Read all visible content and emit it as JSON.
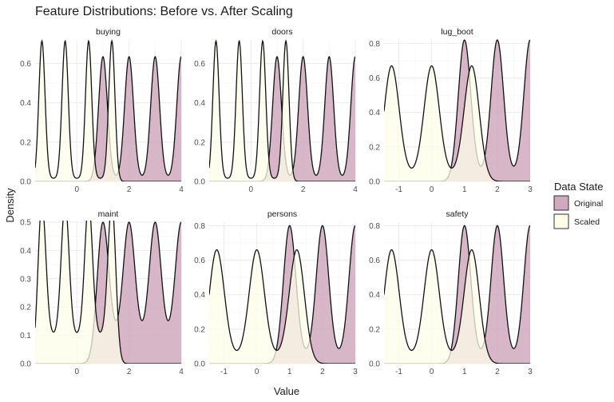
{
  "chart_data": {
    "type": "area",
    "title": "Feature Distributions: Before vs. After Scaling",
    "xlabel": "Value",
    "ylabel": "Density",
    "legend": {
      "title": "Data State",
      "placement": "right",
      "entries": [
        {
          "name": "Original",
          "fill": "#cfa9bd"
        },
        {
          "name": "Scaled",
          "fill": "#fdfde8"
        }
      ]
    },
    "grid": true,
    "facets": [
      {
        "name": "buying",
        "xlim": [
          -1.6,
          4.0
        ],
        "ylim": [
          0,
          0.72
        ],
        "xticks": [
          0,
          2,
          4
        ],
        "xticklabels": [
          "0",
          "2",
          "4"
        ],
        "yticks": [
          0,
          0.2,
          0.4,
          0.6
        ],
        "yticklabels": [
          "0.0",
          "0.2",
          "0.4",
          "0.6"
        ],
        "series": [
          {
            "name": "Original",
            "peaks": [
              1,
              2,
              3,
              4
            ],
            "sd": 0.17,
            "height": 0.62,
            "min_between": 0.015
          },
          {
            "name": "Scaled",
            "peaks": [
              -1.34,
              -0.45,
              0.45,
              1.34
            ],
            "sd": 0.12,
            "height": 0.7,
            "min_between": 0.015
          }
        ]
      },
      {
        "name": "doors",
        "xlim": [
          -1.6,
          4.0
        ],
        "ylim": [
          0,
          0.72
        ],
        "xticks": [
          0,
          2,
          4
        ],
        "xticklabels": [
          "0",
          "2",
          "4"
        ],
        "yticks": [
          0,
          0.2,
          0.4,
          0.6
        ],
        "yticklabels": [
          "0.0",
          "0.2",
          "0.4",
          "0.6"
        ],
        "series": [
          {
            "name": "Original",
            "peaks": [
              1,
              2,
              3,
              4
            ],
            "sd": 0.17,
            "height": 0.62,
            "min_between": 0.015
          },
          {
            "name": "Scaled",
            "peaks": [
              -1.34,
              -0.45,
              0.45,
              1.34
            ],
            "sd": 0.12,
            "height": 0.7,
            "min_between": 0.015
          }
        ]
      },
      {
        "name": "lug_boot",
        "xlim": [
          -1.45,
          3.0
        ],
        "ylim": [
          0,
          0.82
        ],
        "xticks": [
          -1,
          0,
          1,
          2,
          3
        ],
        "xticklabels": [
          "-1",
          "0",
          "1",
          "2",
          "3"
        ],
        "yticks": [
          0,
          0.2,
          0.4,
          0.6,
          0.8
        ],
        "yticklabels": [
          "0.0",
          "0.2",
          "0.4",
          "0.6",
          "0.8"
        ],
        "series": [
          {
            "name": "Original",
            "peaks": [
              1,
              2,
              3
            ],
            "sd": 0.19,
            "height": 0.78,
            "min_between": 0.04
          },
          {
            "name": "Scaled",
            "peaks": [
              -1.22,
              0,
              1.22
            ],
            "sd": 0.23,
            "height": 0.63,
            "min_between": 0.04
          }
        ]
      },
      {
        "name": "maint",
        "xlim": [
          -1.6,
          4.0
        ],
        "ylim": [
          0,
          0.5
        ],
        "xticks": [
          0,
          2,
          4
        ],
        "xticklabels": [
          "0",
          "2",
          "4"
        ],
        "yticks": [
          0,
          0.1,
          0.2,
          0.3,
          0.4,
          0.5
        ],
        "yticklabels": [
          "0.0",
          "0.1",
          "0.2",
          "0.3",
          "0.4",
          "0.5"
        ],
        "series": [
          {
            "name": "Original",
            "peaks": [
              1,
              2,
              3,
              4
            ],
            "sd": 0.22,
            "height": 0.41,
            "min_between": 0.09
          },
          {
            "name": "Scaled",
            "peaks": [
              -1.34,
              -0.45,
              0.45,
              1.34
            ],
            "sd": 0.15,
            "height": 0.47,
            "min_between": 0.1
          }
        ]
      },
      {
        "name": "persons",
        "xlim": [
          -1.45,
          3.0
        ],
        "ylim": [
          0,
          0.82
        ],
        "xticks": [
          -1,
          0,
          1,
          2,
          3
        ],
        "xticklabels": [
          "-1",
          "0",
          "1",
          "2",
          "3"
        ],
        "yticks": [
          0,
          0.2,
          0.4,
          0.6,
          0.8
        ],
        "yticklabels": [
          "0.0",
          "0.2",
          "0.4",
          "0.6",
          "0.8"
        ],
        "series": [
          {
            "name": "Original",
            "peaks": [
              1,
              2,
              3
            ],
            "sd": 0.19,
            "height": 0.76,
            "min_between": 0.04
          },
          {
            "name": "Scaled",
            "peaks": [
              -1.22,
              0,
              1.22
            ],
            "sd": 0.23,
            "height": 0.62,
            "min_between": 0.04
          }
        ]
      },
      {
        "name": "safety",
        "xlim": [
          -1.45,
          3.0
        ],
        "ylim": [
          0,
          0.82
        ],
        "xticks": [
          -1,
          0,
          1,
          2,
          3
        ],
        "xticklabels": [
          "-1",
          "0",
          "1",
          "2",
          "3"
        ],
        "yticks": [
          0,
          0.2,
          0.4,
          0.6,
          0.8
        ],
        "yticklabels": [
          "0.0",
          "0.2",
          "0.4",
          "0.6",
          "0.8"
        ],
        "series": [
          {
            "name": "Original",
            "peaks": [
              1,
              2,
              3
            ],
            "sd": 0.19,
            "height": 0.76,
            "min_between": 0.04
          },
          {
            "name": "Scaled",
            "peaks": [
              -1.22,
              0,
              1.22
            ],
            "sd": 0.23,
            "height": 0.62,
            "min_between": 0.04
          }
        ]
      }
    ]
  }
}
